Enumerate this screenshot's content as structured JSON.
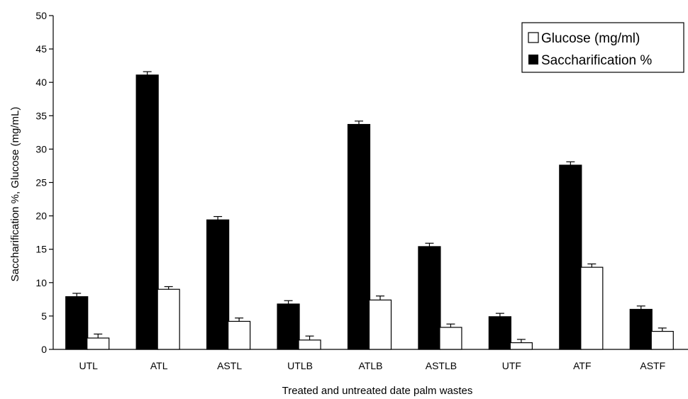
{
  "chart_data": {
    "type": "bar",
    "xlabel": "Treated and untreated date palm wastes",
    "ylabel": "Saccharification %, Glucose (mg/mL)",
    "ylim": [
      0,
      50
    ],
    "yticks": [
      0,
      5,
      10,
      15,
      20,
      25,
      30,
      35,
      40,
      45,
      50
    ],
    "categories": [
      "UTL",
      "ATL",
      "ASTL",
      "UTLB",
      "ATLB",
      "ASTLB",
      "UTF",
      "ATF",
      "ASTF"
    ],
    "series": [
      {
        "name": "Saccharification %",
        "color": "#000000",
        "values": [
          7.9,
          41.1,
          19.4,
          6.8,
          33.7,
          15.4,
          4.9,
          27.6,
          6.0
        ],
        "errors": [
          0.5,
          0.5,
          0.5,
          0.5,
          0.5,
          0.5,
          0.5,
          0.5,
          0.5
        ]
      },
      {
        "name": "Glucose (mg/ml)",
        "color": "#ffffff",
        "values": [
          1.7,
          9.0,
          4.2,
          1.4,
          7.4,
          3.3,
          1.0,
          12.3,
          2.7
        ],
        "errors": [
          0.6,
          0.4,
          0.5,
          0.6,
          0.6,
          0.5,
          0.5,
          0.5,
          0.5
        ]
      }
    ],
    "legend": {
      "position": "top-right",
      "entries": [
        "Glucose (mg/ml)",
        "Saccharification %"
      ]
    },
    "grid": false
  }
}
